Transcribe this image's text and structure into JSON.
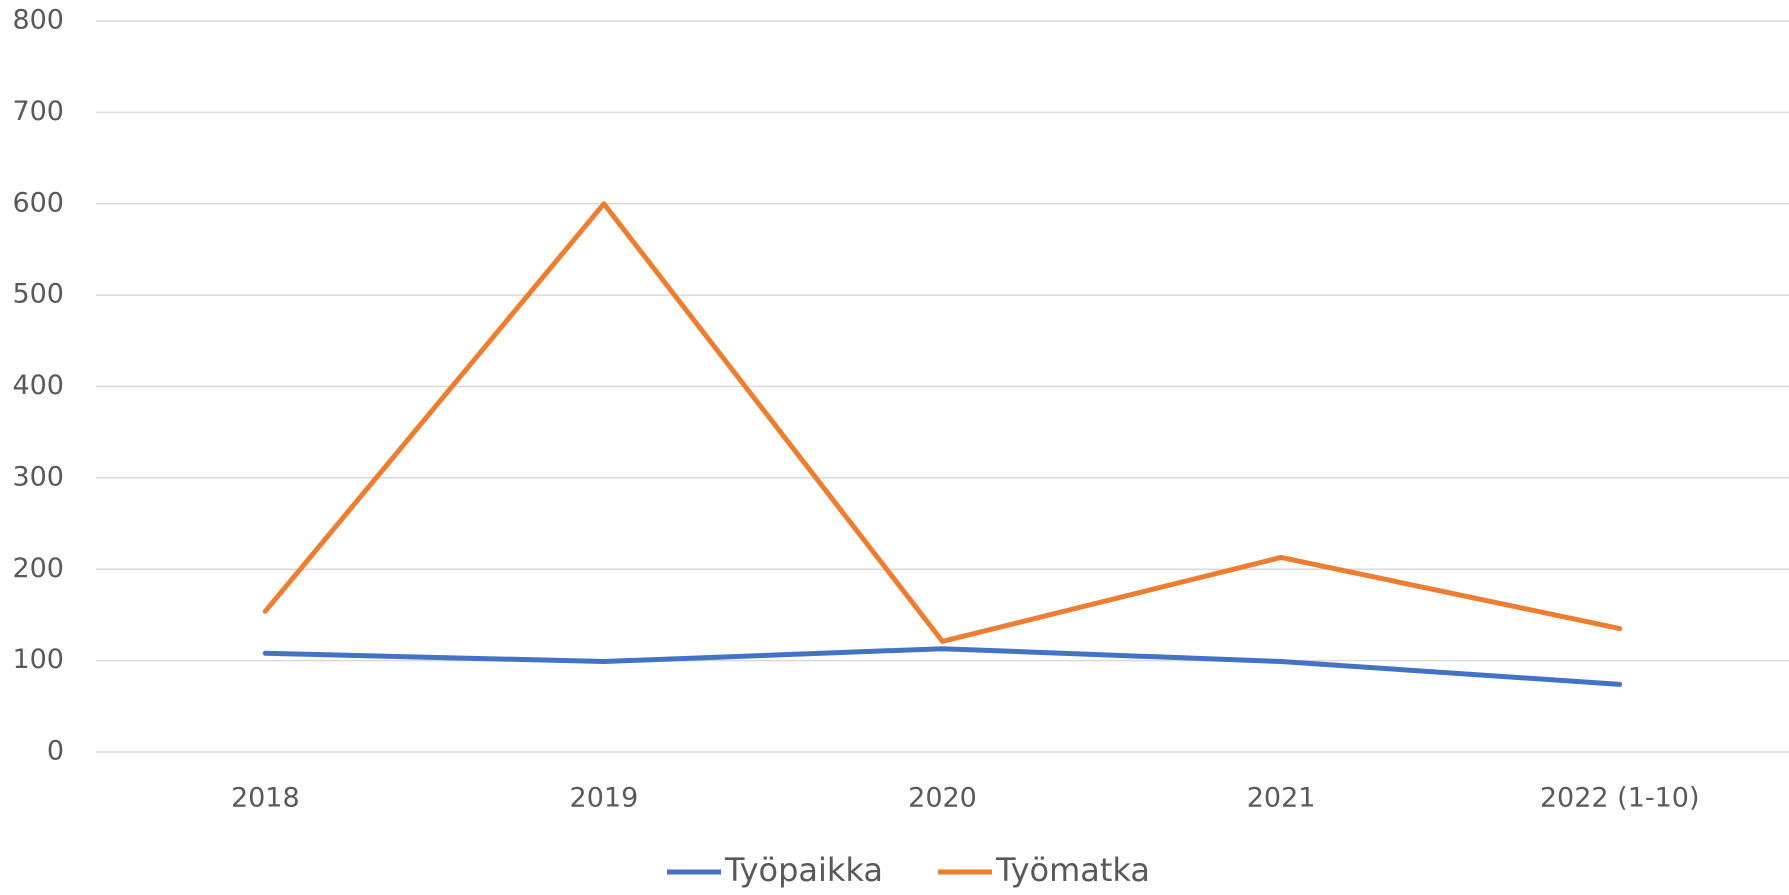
{
  "chart_data": {
    "type": "line",
    "categories": [
      "2018",
      "2019",
      "2020",
      "2021",
      "2022 (1-10)"
    ],
    "series": [
      {
        "name": "Työpaikka",
        "color": "#4472c4",
        "values": [
          108,
          99,
          113,
          99,
          74
        ]
      },
      {
        "name": "Työmatka",
        "color": "#ed7d31",
        "values": [
          154,
          600,
          121,
          213,
          135
        ]
      }
    ],
    "ylim": [
      0,
      800
    ],
    "yticks": [
      0,
      100,
      200,
      300,
      400,
      500,
      600,
      700,
      800
    ],
    "grid": true,
    "legend": "bottom"
  }
}
